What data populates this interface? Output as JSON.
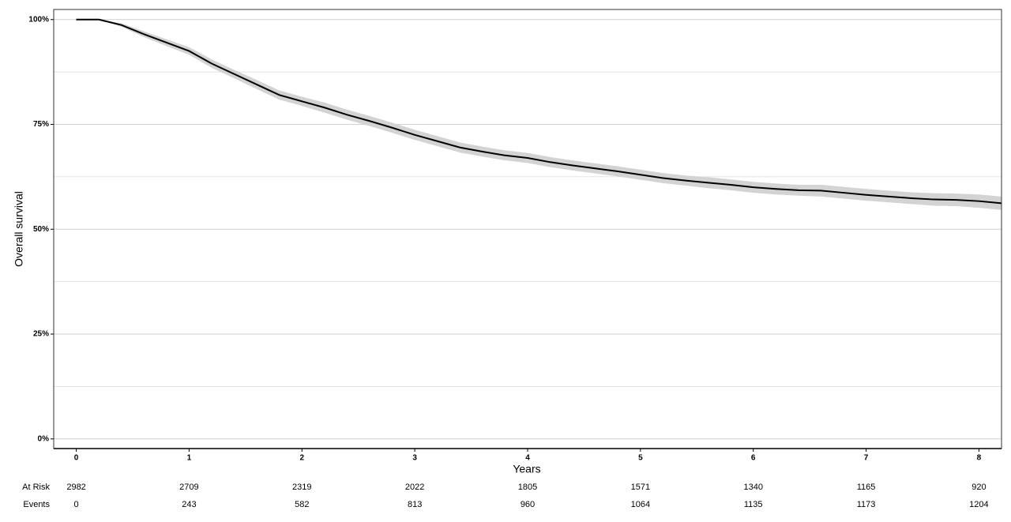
{
  "chart_data": {
    "type": "survival",
    "x_label": "Years",
    "y_label": "Overall survival",
    "x": [
      0,
      0.2,
      0.4,
      0.6,
      0.8,
      1.0,
      1.2,
      1.4,
      1.6,
      1.8,
      2.0,
      2.2,
      2.4,
      2.6,
      2.8,
      3.0,
      3.2,
      3.4,
      3.6,
      3.8,
      4.0,
      4.2,
      4.4,
      4.6,
      4.8,
      5.0,
      5.2,
      5.4,
      5.6,
      5.8,
      6.0,
      6.2,
      6.4,
      6.6,
      6.8,
      7.0,
      7.2,
      7.4,
      7.6,
      7.8,
      8.0,
      8.2
    ],
    "series": [
      {
        "name": "Overall survival",
        "color": "#000000",
        "values": [
          100,
          100,
          98.7,
          96.5,
          94.5,
          92.5,
          89.5,
          87,
          84.5,
          82,
          80.5,
          79,
          77.3,
          75.8,
          74.2,
          72.5,
          71,
          69.5,
          68.5,
          67.6,
          67,
          66,
          65.2,
          64.5,
          63.8,
          63,
          62.2,
          61.6,
          61.1,
          60.6,
          60,
          59.6,
          59.3,
          59.2,
          58.7,
          58.2,
          57.8,
          57.4,
          57.1,
          57,
          56.7,
          56.2
        ],
        "ci_lower": [
          100,
          100,
          98.3,
          95.8,
          93.7,
          91.6,
          88.5,
          86,
          83.4,
          80.9,
          79.4,
          77.8,
          76.1,
          74.6,
          73,
          71.3,
          69.8,
          68.3,
          67.3,
          66.4,
          65.8,
          64.8,
          64,
          63.3,
          62.6,
          61.8,
          61,
          60.4,
          59.8,
          59.3,
          58.7,
          58.3,
          58,
          57.8,
          57.3,
          56.8,
          56.4,
          56,
          55.6,
          55.5,
          55.1,
          54.6
        ],
        "ci_upper": [
          100,
          100,
          99.1,
          97.2,
          95.3,
          93.4,
          90.5,
          88,
          85.6,
          83.1,
          81.6,
          80.2,
          78.5,
          77,
          75.4,
          73.7,
          72.2,
          70.7,
          69.7,
          68.8,
          68.2,
          67.2,
          66.4,
          65.7,
          65,
          64.2,
          63.4,
          62.8,
          62.4,
          61.9,
          61.3,
          60.9,
          60.6,
          60.6,
          60.1,
          59.6,
          59.2,
          58.8,
          58.6,
          58.5,
          58.3,
          57.8
        ],
        "band_color": "#d3d3d3"
      }
    ],
    "xlim": [
      -0.2,
      8.2
    ],
    "xticks": [
      0,
      1,
      2,
      3,
      4,
      5,
      6,
      7,
      8
    ],
    "ylim": [
      -2.3,
      102.4
    ],
    "yticks": [
      {
        "value": 0,
        "label": "0%"
      },
      {
        "value": 25,
        "label": "25%"
      },
      {
        "value": 50,
        "label": "50%"
      },
      {
        "value": 75,
        "label": "75%"
      },
      {
        "value": 100,
        "label": "100%"
      }
    ],
    "y_minor_grid": [
      12.5,
      37.5,
      62.5,
      87.5
    ],
    "grid": true,
    "risk_table": {
      "years": [
        0,
        1,
        2,
        3,
        4,
        5,
        6,
        7,
        8
      ],
      "rows": [
        {
          "label": "At Risk",
          "values": [
            2982,
            2709,
            2319,
            2022,
            1805,
            1571,
            1340,
            1165,
            920
          ]
        },
        {
          "label": "Events",
          "values": [
            0,
            243,
            582,
            813,
            960,
            1064,
            1135,
            1173,
            1204
          ]
        }
      ]
    }
  }
}
